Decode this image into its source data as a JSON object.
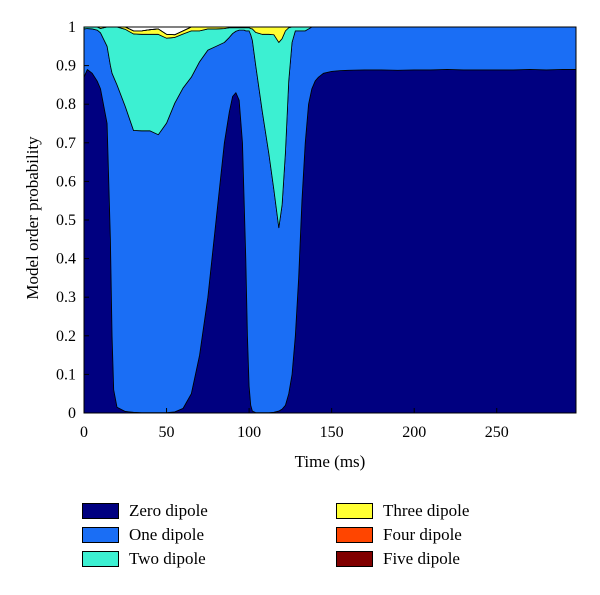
{
  "chart_data": {
    "type": "area",
    "stacked": true,
    "xlabel": "Time (ms)",
    "ylabel": "Model order probability",
    "xlim": [
      0,
      298
    ],
    "ylim": [
      0,
      1
    ],
    "x_ticks": [
      "0",
      "50",
      "100",
      "150",
      "200",
      "250"
    ],
    "y_ticks": [
      "0",
      "0.1",
      "0.2",
      "0.3",
      "0.4",
      "0.5",
      "0.6",
      "0.7",
      "0.8",
      "0.9",
      "1"
    ],
    "grid": false,
    "legend_position": "bottom",
    "x": [
      0,
      2,
      5,
      8,
      10,
      14,
      16,
      17,
      18,
      20,
      25,
      30,
      35,
      40,
      45,
      50,
      55,
      60,
      65,
      70,
      75,
      80,
      85,
      88,
      90,
      92,
      94,
      96,
      97,
      98,
      99,
      100,
      101,
      102,
      104,
      108,
      112,
      115,
      118,
      120,
      122,
      124,
      126,
      128,
      130,
      132,
      134,
      136,
      138,
      140,
      142,
      145,
      150,
      155,
      160,
      170,
      180,
      190,
      200,
      210,
      220,
      230,
      240,
      250,
      260,
      270,
      280,
      290,
      298
    ],
    "series": [
      {
        "name": "Zero dipole",
        "color": "#000080",
        "values": [
          0.87,
          0.89,
          0.88,
          0.86,
          0.84,
          0.75,
          0.45,
          0.2,
          0.06,
          0.015,
          0.004,
          0.002,
          0.001,
          0.001,
          0.001,
          0.001,
          0.003,
          0.012,
          0.05,
          0.15,
          0.3,
          0.5,
          0.7,
          0.78,
          0.82,
          0.83,
          0.81,
          0.7,
          0.55,
          0.4,
          0.2,
          0.07,
          0.02,
          0.005,
          0.001,
          0.001,
          0.001,
          0.002,
          0.005,
          0.01,
          0.02,
          0.05,
          0.1,
          0.2,
          0.35,
          0.55,
          0.7,
          0.8,
          0.84,
          0.86,
          0.87,
          0.88,
          0.885,
          0.887,
          0.888,
          0.889,
          0.889,
          0.888,
          0.889,
          0.889,
          0.89,
          0.889,
          0.889,
          0.889,
          0.889,
          0.89,
          0.889,
          0.89,
          0.89
        ]
      },
      {
        "name": "One dipole",
        "color": "#1a6ef5",
        "values": [
          0.125,
          0.106,
          0.115,
          0.132,
          0.145,
          0.2,
          0.45,
          0.68,
          0.81,
          0.835,
          0.79,
          0.73,
          0.73,
          0.73,
          0.72,
          0.75,
          0.8,
          0.83,
          0.82,
          0.76,
          0.64,
          0.45,
          0.26,
          0.193,
          0.163,
          0.159,
          0.182,
          0.292,
          0.442,
          0.59,
          0.79,
          0.92,
          0.96,
          0.96,
          0.9,
          0.78,
          0.67,
          0.577,
          0.475,
          0.53,
          0.655,
          0.81,
          0.86,
          0.79,
          0.64,
          0.44,
          0.29,
          0.195,
          0.16,
          0.14,
          0.13,
          0.12,
          0.115,
          0.113,
          0.112,
          0.111,
          0.111,
          0.112,
          0.111,
          0.111,
          0.11,
          0.111,
          0.111,
          0.111,
          0.111,
          0.11,
          0.111,
          0.11,
          0.11
        ]
      },
      {
        "name": "Two dipole",
        "color": "#3cf0d2",
        "values": [
          0.005,
          0.004,
          0.005,
          0.008,
          0.011,
          0.05,
          0.1,
          0.12,
          0.13,
          0.15,
          0.2,
          0.25,
          0.25,
          0.25,
          0.26,
          0.22,
          0.17,
          0.14,
          0.12,
          0.08,
          0.055,
          0.045,
          0.036,
          0.025,
          0.015,
          0.009,
          0.006,
          0.006,
          0.006,
          0.008,
          0.008,
          0.008,
          0.016,
          0.03,
          0.085,
          0.2,
          0.31,
          0.401,
          0.48,
          0.43,
          0.315,
          0.138,
          0.04,
          0.01,
          0.01,
          0.01,
          0.01,
          0.005,
          0.0,
          0.0,
          0.0,
          0.0,
          0.0,
          0.0,
          0.0,
          0.0,
          0.0,
          0.0,
          0.0,
          0.0,
          0.0,
          0.0,
          0.0,
          0.0,
          0.0,
          0.0,
          0.0,
          0.0,
          0.0
        ]
      },
      {
        "name": "Three dipole",
        "color": "#ffff33",
        "values": [
          0.0,
          0.0,
          0.0,
          0.0,
          0.005,
          0.0,
          0.0,
          0.0,
          0.0,
          0.0,
          0.006,
          0.008,
          0.009,
          0.012,
          0.014,
          0.01,
          0.007,
          0.008,
          0.01,
          0.01,
          0.005,
          0.005,
          0.004,
          0.002,
          0.002,
          0.002,
          0.002,
          0.002,
          0.002,
          0.002,
          0.002,
          0.002,
          0.004,
          0.005,
          0.014,
          0.02,
          0.019,
          0.02,
          0.04,
          0.03,
          0.01,
          0.002,
          0.0,
          0.0,
          0.0,
          0.0,
          0.0,
          0.0,
          0.0,
          0.0,
          0.0,
          0.0,
          0.0,
          0.0,
          0.0,
          0.0,
          0.0,
          0.0,
          0.0,
          0.0,
          0.0,
          0.0,
          0.0,
          0.0,
          0.0,
          0.0,
          0.0,
          0.0,
          0.0
        ]
      },
      {
        "name": "Four dipole",
        "color": "#ff4500",
        "values": [
          0,
          0,
          0,
          0,
          0,
          0,
          0,
          0,
          0,
          0,
          0,
          0,
          0,
          0,
          0,
          0,
          0,
          0,
          0,
          0,
          0,
          0,
          0,
          0,
          0,
          0,
          0,
          0,
          0,
          0,
          0,
          0,
          0,
          0,
          0,
          0,
          0,
          0,
          0,
          0,
          0,
          0,
          0,
          0,
          0,
          0,
          0,
          0,
          0,
          0,
          0,
          0,
          0,
          0,
          0,
          0,
          0,
          0,
          0,
          0,
          0,
          0,
          0,
          0,
          0,
          0,
          0,
          0,
          0
        ]
      },
      {
        "name": "Five dipole",
        "color": "#800000",
        "values": [
          0,
          0,
          0,
          0,
          0,
          0,
          0,
          0,
          0,
          0,
          0,
          0,
          0,
          0,
          0,
          0,
          0,
          0,
          0,
          0,
          0,
          0,
          0,
          0,
          0,
          0,
          0,
          0,
          0,
          0,
          0,
          0,
          0,
          0,
          0,
          0,
          0,
          0,
          0,
          0,
          0,
          0,
          0,
          0,
          0,
          0,
          0,
          0,
          0,
          0,
          0,
          0,
          0,
          0,
          0,
          0,
          0,
          0,
          0,
          0,
          0,
          0,
          0,
          0,
          0,
          0,
          0,
          0,
          0
        ]
      }
    ]
  }
}
